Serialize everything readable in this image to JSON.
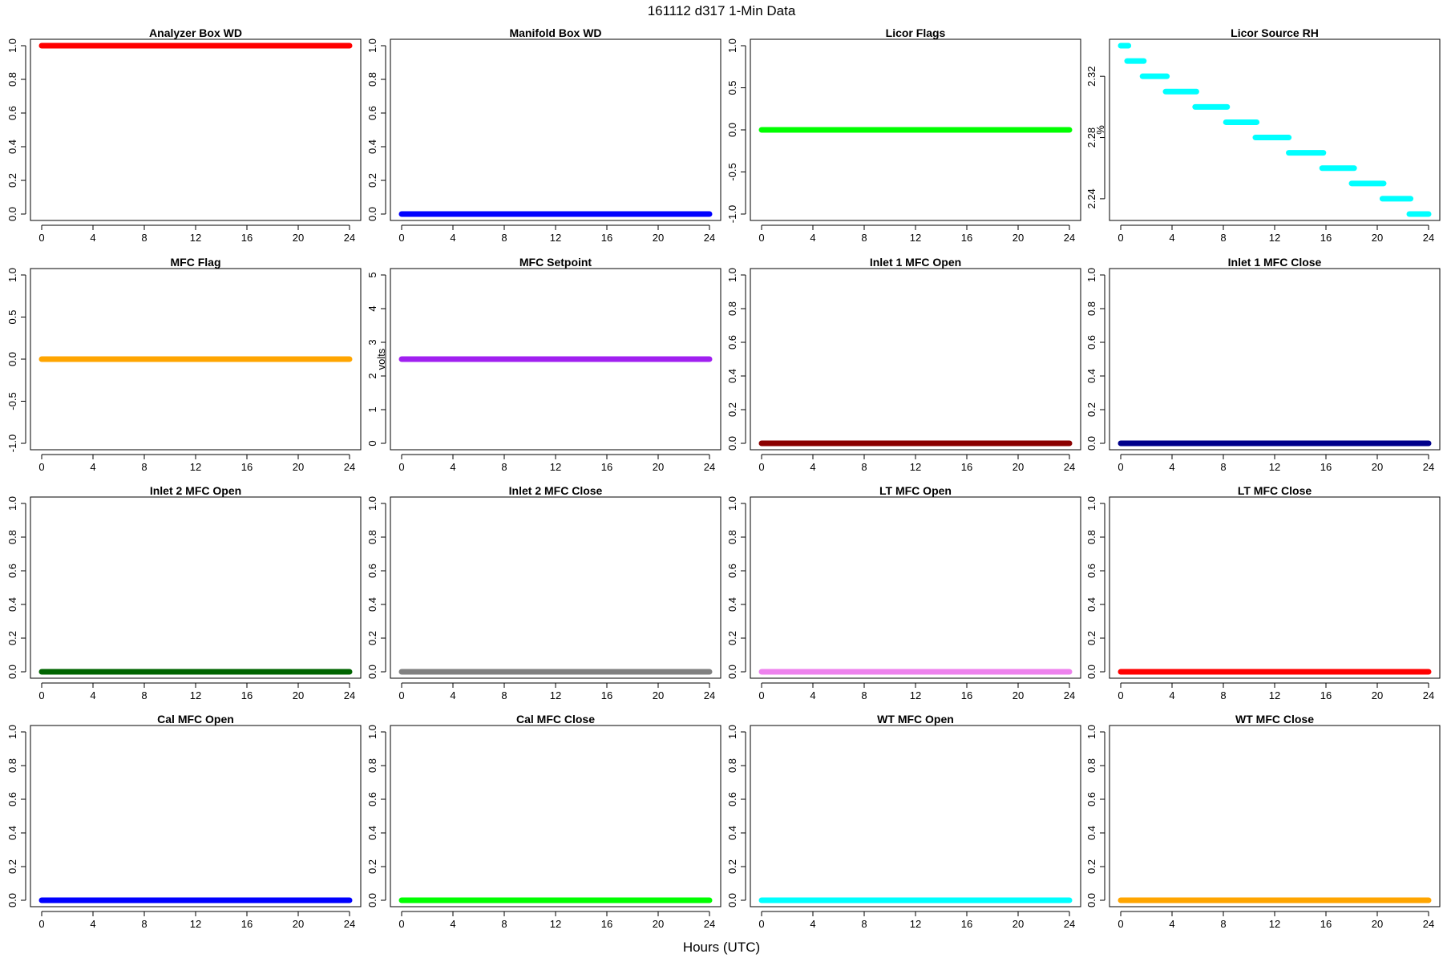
{
  "figure": {
    "title": "161112   d317   1-Min Data",
    "xlabel": "Hours (UTC)"
  },
  "chart_data": [
    {
      "type": "scatter",
      "title": "Analyzer Box WD",
      "ylabel": "",
      "color": "#ff0000",
      "xlim": [
        0,
        24
      ],
      "xticks": [
        "0",
        "4",
        "8",
        "12",
        "16",
        "20",
        "24"
      ],
      "ylim": [
        0,
        1
      ],
      "yticks": [
        "0.0",
        "0.2",
        "0.4",
        "0.6",
        "0.8",
        "1.0"
      ],
      "segments": [
        {
          "x": [
            0,
            24
          ],
          "y": 1
        }
      ]
    },
    {
      "type": "scatter",
      "title": "Manifold Box WD",
      "ylabel": "",
      "color": "#0000ff",
      "xlim": [
        0,
        24
      ],
      "xticks": [
        "0",
        "4",
        "8",
        "12",
        "16",
        "20",
        "24"
      ],
      "ylim": [
        0,
        1
      ],
      "yticks": [
        "0.0",
        "0.2",
        "0.4",
        "0.6",
        "0.8",
        "1.0"
      ],
      "segments": [
        {
          "x": [
            0,
            24
          ],
          "y": 0
        }
      ]
    },
    {
      "type": "scatter",
      "title": "Licor Flags",
      "ylabel": "",
      "color": "#00ff00",
      "xlim": [
        0,
        24
      ],
      "xticks": [
        "0",
        "4",
        "8",
        "12",
        "16",
        "20",
        "24"
      ],
      "ylim": [
        -1,
        1
      ],
      "yticks": [
        "-1.0",
        "-0.5",
        "0.0",
        "0.5",
        "1.0"
      ],
      "segments": [
        {
          "x": [
            0,
            24
          ],
          "y": 0
        }
      ]
    },
    {
      "type": "scatter",
      "title": "Licor Source RH",
      "ylabel": "%",
      "color": "#00ffff",
      "xlim": [
        0,
        24
      ],
      "xticks": [
        "0",
        "4",
        "8",
        "12",
        "16",
        "20",
        "24"
      ],
      "ylim": [
        2.23,
        2.34
      ],
      "yticks": [
        "2.24",
        "2.28",
        "2.32"
      ],
      "segments": [
        {
          "x": [
            0,
            0.6
          ],
          "y": 2.34
        },
        {
          "x": [
            0.5,
            1.8
          ],
          "y": 2.33
        },
        {
          "x": [
            1.7,
            3.6
          ],
          "y": 2.32
        },
        {
          "x": [
            3.5,
            5.9
          ],
          "y": 2.31
        },
        {
          "x": [
            5.8,
            8.3
          ],
          "y": 2.3
        },
        {
          "x": [
            8.2,
            10.6
          ],
          "y": 2.29
        },
        {
          "x": [
            10.5,
            13.1
          ],
          "y": 2.28
        },
        {
          "x": [
            13.1,
            15.8
          ],
          "y": 2.27
        },
        {
          "x": [
            15.7,
            18.2
          ],
          "y": 2.26
        },
        {
          "x": [
            18.0,
            20.5
          ],
          "y": 2.25
        },
        {
          "x": [
            20.4,
            22.6
          ],
          "y": 2.24
        },
        {
          "x": [
            22.5,
            24
          ],
          "y": 2.23
        }
      ]
    },
    {
      "type": "scatter",
      "title": "MFC Flag",
      "ylabel": "",
      "color": "#ffa500",
      "xlim": [
        0,
        24
      ],
      "xticks": [
        "0",
        "4",
        "8",
        "12",
        "16",
        "20",
        "24"
      ],
      "ylim": [
        -1,
        1
      ],
      "yticks": [
        "-1.0",
        "-0.5",
        "0.0",
        "0.5",
        "1.0"
      ],
      "segments": [
        {
          "x": [
            0,
            24
          ],
          "y": 0
        }
      ]
    },
    {
      "type": "scatter",
      "title": "MFC Setpoint",
      "ylabel": "volts",
      "color": "#a020f0",
      "xlim": [
        0,
        24
      ],
      "xticks": [
        "0",
        "4",
        "8",
        "12",
        "16",
        "20",
        "24"
      ],
      "ylim": [
        0,
        5
      ],
      "yticks": [
        "0",
        "1",
        "2",
        "3",
        "4",
        "5"
      ],
      "segments": [
        {
          "x": [
            0,
            24
          ],
          "y": 2.5
        }
      ]
    },
    {
      "type": "scatter",
      "title": "Inlet 1 MFC Open",
      "ylabel": "",
      "color": "#8b0000",
      "xlim": [
        0,
        24
      ],
      "xticks": [
        "0",
        "4",
        "8",
        "12",
        "16",
        "20",
        "24"
      ],
      "ylim": [
        0,
        1
      ],
      "yticks": [
        "0.0",
        "0.2",
        "0.4",
        "0.6",
        "0.8",
        "1.0"
      ],
      "segments": [
        {
          "x": [
            0,
            24
          ],
          "y": 0
        }
      ]
    },
    {
      "type": "scatter",
      "title": "Inlet 1 MFC Close",
      "ylabel": "",
      "color": "#00008b",
      "xlim": [
        0,
        24
      ],
      "xticks": [
        "0",
        "4",
        "8",
        "12",
        "16",
        "20",
        "24"
      ],
      "ylim": [
        0,
        1
      ],
      "yticks": [
        "0.0",
        "0.2",
        "0.4",
        "0.6",
        "0.8",
        "1.0"
      ],
      "segments": [
        {
          "x": [
            0,
            24
          ],
          "y": 0
        }
      ]
    },
    {
      "type": "scatter",
      "title": "Inlet 2 MFC Open",
      "ylabel": "",
      "color": "#006400",
      "xlim": [
        0,
        24
      ],
      "xticks": [
        "0",
        "4",
        "8",
        "12",
        "16",
        "20",
        "24"
      ],
      "ylim": [
        0,
        1
      ],
      "yticks": [
        "0.0",
        "0.2",
        "0.4",
        "0.6",
        "0.8",
        "1.0"
      ],
      "segments": [
        {
          "x": [
            0,
            24
          ],
          "y": 0
        }
      ]
    },
    {
      "type": "scatter",
      "title": "Inlet 2 MFC Close",
      "ylabel": "",
      "color": "#808080",
      "xlim": [
        0,
        24
      ],
      "xticks": [
        "0",
        "4",
        "8",
        "12",
        "16",
        "20",
        "24"
      ],
      "ylim": [
        0,
        1
      ],
      "yticks": [
        "0.0",
        "0.2",
        "0.4",
        "0.6",
        "0.8",
        "1.0"
      ],
      "segments": [
        {
          "x": [
            0,
            24
          ],
          "y": 0
        }
      ]
    },
    {
      "type": "scatter",
      "title": "LT MFC Open",
      "ylabel": "",
      "color": "#ee82ee",
      "xlim": [
        0,
        24
      ],
      "xticks": [
        "0",
        "4",
        "8",
        "12",
        "16",
        "20",
        "24"
      ],
      "ylim": [
        0,
        1
      ],
      "yticks": [
        "0.0",
        "0.2",
        "0.4",
        "0.6",
        "0.8",
        "1.0"
      ],
      "segments": [
        {
          "x": [
            0,
            24
          ],
          "y": 0
        }
      ]
    },
    {
      "type": "scatter",
      "title": "LT MFC Close",
      "ylabel": "",
      "color": "#ff0000",
      "xlim": [
        0,
        24
      ],
      "xticks": [
        "0",
        "4",
        "8",
        "12",
        "16",
        "20",
        "24"
      ],
      "ylim": [
        0,
        1
      ],
      "yticks": [
        "0.0",
        "0.2",
        "0.4",
        "0.6",
        "0.8",
        "1.0"
      ],
      "segments": [
        {
          "x": [
            0,
            24
          ],
          "y": 0
        }
      ]
    },
    {
      "type": "scatter",
      "title": "Cal MFC Open",
      "ylabel": "",
      "color": "#0000ff",
      "xlim": [
        0,
        24
      ],
      "xticks": [
        "0",
        "4",
        "8",
        "12",
        "16",
        "20",
        "24"
      ],
      "ylim": [
        0,
        1
      ],
      "yticks": [
        "0.0",
        "0.2",
        "0.4",
        "0.6",
        "0.8",
        "1.0"
      ],
      "segments": [
        {
          "x": [
            0,
            24
          ],
          "y": 0
        }
      ]
    },
    {
      "type": "scatter",
      "title": "Cal MFC Close",
      "ylabel": "",
      "color": "#00ff00",
      "xlim": [
        0,
        24
      ],
      "xticks": [
        "0",
        "4",
        "8",
        "12",
        "16",
        "20",
        "24"
      ],
      "ylim": [
        0,
        1
      ],
      "yticks": [
        "0.0",
        "0.2",
        "0.4",
        "0.6",
        "0.8",
        "1.0"
      ],
      "segments": [
        {
          "x": [
            0,
            24
          ],
          "y": 0
        }
      ]
    },
    {
      "type": "scatter",
      "title": "WT MFC Open",
      "ylabel": "",
      "color": "#00ffff",
      "xlim": [
        0,
        24
      ],
      "xticks": [
        "0",
        "4",
        "8",
        "12",
        "16",
        "20",
        "24"
      ],
      "ylim": [
        0,
        1
      ],
      "yticks": [
        "0.0",
        "0.2",
        "0.4",
        "0.6",
        "0.8",
        "1.0"
      ],
      "segments": [
        {
          "x": [
            0,
            24
          ],
          "y": 0
        }
      ]
    },
    {
      "type": "scatter",
      "title": "WT MFC Close",
      "ylabel": "",
      "color": "#ffa500",
      "xlim": [
        0,
        24
      ],
      "xticks": [
        "0",
        "4",
        "8",
        "12",
        "16",
        "20",
        "24"
      ],
      "ylim": [
        0,
        1
      ],
      "yticks": [
        "0.0",
        "0.2",
        "0.4",
        "0.6",
        "0.8",
        "1.0"
      ],
      "segments": [
        {
          "x": [
            0,
            24
          ],
          "y": 0
        }
      ]
    }
  ]
}
